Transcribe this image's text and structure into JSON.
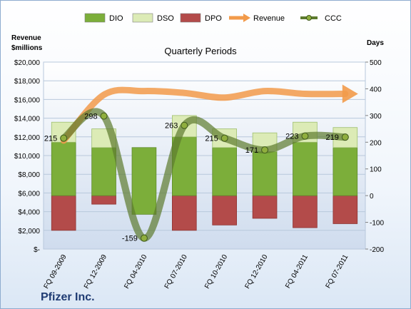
{
  "chart_data": {
    "type": "bar",
    "title": "Quarterly Periods",
    "company": "Pfizer Inc.",
    "y_left_label": [
      "Revenue",
      "$millions"
    ],
    "y_right_label": "Days",
    "y_left_ticks": [
      "$-",
      "$2,000",
      "$4,000",
      "$6,000",
      "$8,000",
      "$10,000",
      "$12,000",
      "$14,000",
      "$16,000",
      "$18,000",
      "$20,000"
    ],
    "y_left_lim": [
      0,
      20000
    ],
    "y_right_ticks": [
      "-200",
      "-100",
      "0",
      "100",
      "200",
      "300",
      "400",
      "500"
    ],
    "y_right_lim": [
      -200,
      500
    ],
    "legend_position": "top",
    "categories": [
      "FQ 09-2009",
      "FQ 12-2009",
      "FQ 04-2010",
      "FQ 07-2010",
      "FQ 10-2010",
      "FQ 12-2010",
      "FQ 04-2011",
      "FQ 07-2011"
    ],
    "series": [
      {
        "name": "DIO",
        "axis": "right",
        "kind": "stacked-bar",
        "color": "#7cae3a",
        "values": [
          200,
          180,
          250,
          220,
          180,
          165,
          200,
          180
        ]
      },
      {
        "name": "DSO",
        "axis": "right",
        "kind": "stacked-bar",
        "color": "#dcebb6",
        "values": [
          75,
          70,
          0,
          80,
          70,
          70,
          75,
          75
        ]
      },
      {
        "name": "DPO",
        "axis": "right",
        "kind": "negative-bar",
        "color": "#b34b4a",
        "values": [
          -130,
          -32,
          0,
          -130,
          -110,
          -85,
          -120,
          -105
        ]
      },
      {
        "name": "Revenue",
        "axis": "left",
        "kind": "line",
        "color": "#f29a4a",
        "values": [
          11600,
          16500,
          16900,
          16700,
          16200,
          16900,
          16600,
          16600
        ]
      },
      {
        "name": "CCC",
        "axis": "right",
        "kind": "line",
        "color": "#5c7a2e",
        "values": [
          215,
          298,
          -159,
          263,
          215,
          171,
          223,
          219
        ]
      }
    ],
    "data_labels": [
      "215",
      "298",
      "-159",
      "263",
      "215",
      "171",
      "223",
      "219"
    ]
  }
}
